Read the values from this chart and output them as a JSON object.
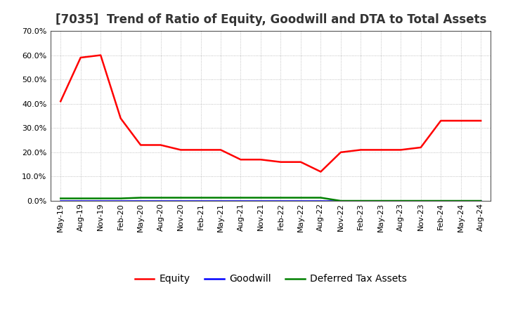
{
  "title": "[7035]  Trend of Ratio of Equity, Goodwill and DTA to Total Assets",
  "x_labels": [
    "May-19",
    "Aug-19",
    "Nov-19",
    "Feb-20",
    "May-20",
    "Aug-20",
    "Nov-20",
    "Feb-21",
    "May-21",
    "Aug-21",
    "Nov-21",
    "Feb-22",
    "May-22",
    "Aug-22",
    "Nov-22",
    "Feb-23",
    "May-23",
    "Aug-23",
    "Nov-23",
    "Feb-24",
    "May-24",
    "Aug-24"
  ],
  "equity": [
    0.41,
    0.59,
    0.6,
    0.34,
    0.23,
    0.23,
    0.21,
    0.21,
    0.21,
    0.17,
    0.17,
    0.16,
    0.16,
    0.12,
    0.2,
    0.21,
    0.21,
    0.21,
    0.22,
    0.33,
    0.33,
    0.33
  ],
  "goodwill": [
    0.0,
    0.0,
    0.0,
    0.0,
    0.0,
    0.0,
    0.0,
    0.0,
    0.0,
    0.0,
    0.0,
    0.0,
    0.0,
    0.0,
    0.0,
    0.0,
    0.0,
    0.0,
    0.0,
    0.0,
    0.0,
    0.0
  ],
  "dta": [
    0.01,
    0.01,
    0.01,
    0.01,
    0.013,
    0.013,
    0.013,
    0.013,
    0.013,
    0.013,
    0.013,
    0.013,
    0.013,
    0.013,
    0.0,
    0.0,
    0.0,
    0.0,
    0.0,
    0.0,
    0.0,
    0.0
  ],
  "equity_color": "#ff0000",
  "goodwill_color": "#0000ff",
  "dta_color": "#008000",
  "ylim": [
    0.0,
    0.7
  ],
  "yticks": [
    0.0,
    0.1,
    0.2,
    0.3,
    0.4,
    0.5,
    0.6,
    0.7
  ],
  "background_color": "#ffffff",
  "grid_color": "#b0b0b0",
  "title_fontsize": 12,
  "tick_fontsize": 8,
  "legend_fontsize": 10
}
